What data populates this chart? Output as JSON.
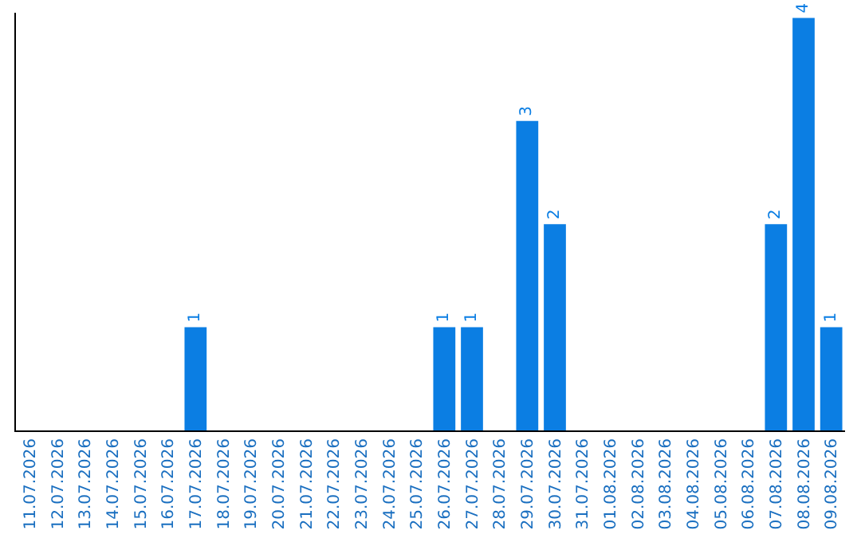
{
  "chart_data": {
    "type": "bar",
    "categories": [
      "11.07.2026",
      "12.07.2026",
      "13.07.2026",
      "14.07.2026",
      "15.07.2026",
      "16.07.2026",
      "17.07.2026",
      "18.07.2026",
      "19.07.2026",
      "20.07.2026",
      "21.07.2026",
      "22.07.2026",
      "23.07.2026",
      "24.07.2026",
      "25.07.2026",
      "26.07.2026",
      "27.07.2026",
      "28.07.2026",
      "29.07.2026",
      "30.07.2026",
      "31.07.2026",
      "01.08.2026",
      "02.08.2026",
      "03.08.2026",
      "04.08.2026",
      "05.08.2026",
      "06.08.2026",
      "07.08.2026",
      "08.08.2026",
      "09.08.2026"
    ],
    "values": [
      0,
      0,
      0,
      0,
      0,
      0,
      1,
      0,
      0,
      0,
      0,
      0,
      0,
      0,
      0,
      1,
      1,
      0,
      3,
      2,
      0,
      0,
      0,
      0,
      0,
      0,
      0,
      2,
      4,
      1
    ],
    "value_labels": [
      null,
      null,
      null,
      null,
      null,
      null,
      "1",
      null,
      null,
      null,
      null,
      null,
      null,
      null,
      null,
      "1",
      "1",
      null,
      "3",
      "2",
      null,
      null,
      null,
      null,
      null,
      null,
      null,
      "2",
      "4",
      "1"
    ],
    "color": "#0b7ee3",
    "ylim": [
      0,
      4.05
    ],
    "tick_labels": "x"
  }
}
